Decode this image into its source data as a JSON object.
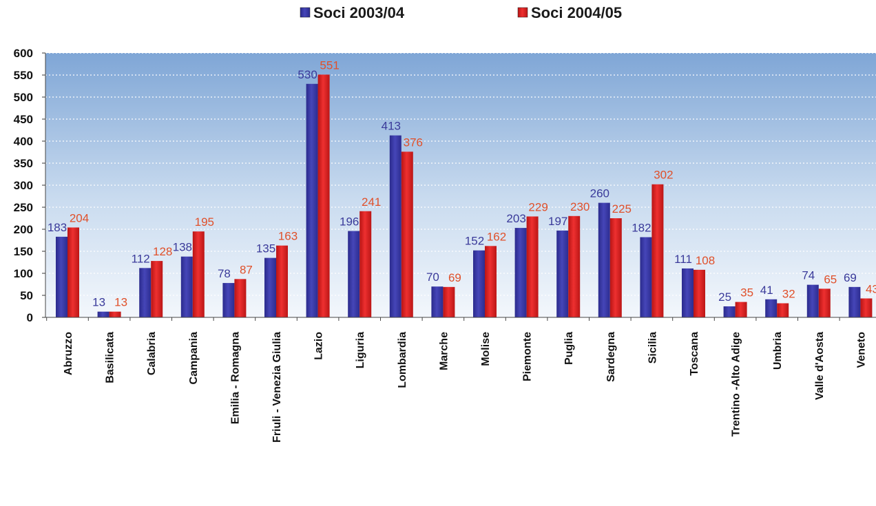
{
  "chart_data": {
    "type": "bar",
    "categories": [
      "Abruzzo",
      "Basilicata",
      "Calabria",
      "Campania",
      "Emilia - Romagna",
      "Friuli - Venezia Giulia",
      "Lazio",
      "Liguria",
      "Lombardia",
      "Marche",
      "Molise",
      "Piemonte",
      "Puglia",
      "Sardegna",
      "Sicilia",
      "Toscana",
      "Trentino -Alto Adige",
      "Umbria",
      "Valle d'Aosta",
      "Veneto"
    ],
    "series": [
      {
        "name": "Soci 2003/04",
        "color": "#3a3aa6",
        "label_color": "#3a3a9a",
        "values": [
          183,
          13,
          112,
          138,
          78,
          135,
          530,
          196,
          413,
          70,
          152,
          203,
          197,
          260,
          182,
          111,
          25,
          41,
          74,
          69
        ]
      },
      {
        "name": "Soci 2004/05",
        "color": "#dd2222",
        "label_color": "#e0502a",
        "values": [
          204,
          13,
          128,
          195,
          87,
          163,
          551,
          241,
          376,
          69,
          162,
          229,
          230,
          225,
          302,
          108,
          35,
          32,
          65,
          43
        ]
      }
    ],
    "ylim": [
      0,
      600
    ],
    "yticks": [
      0,
      50,
      100,
      150,
      200,
      250,
      300,
      350,
      400,
      450,
      500,
      550,
      600
    ],
    "grid": true,
    "legend_position": "top-center",
    "title": "",
    "xlabel": "",
    "ylabel": ""
  }
}
